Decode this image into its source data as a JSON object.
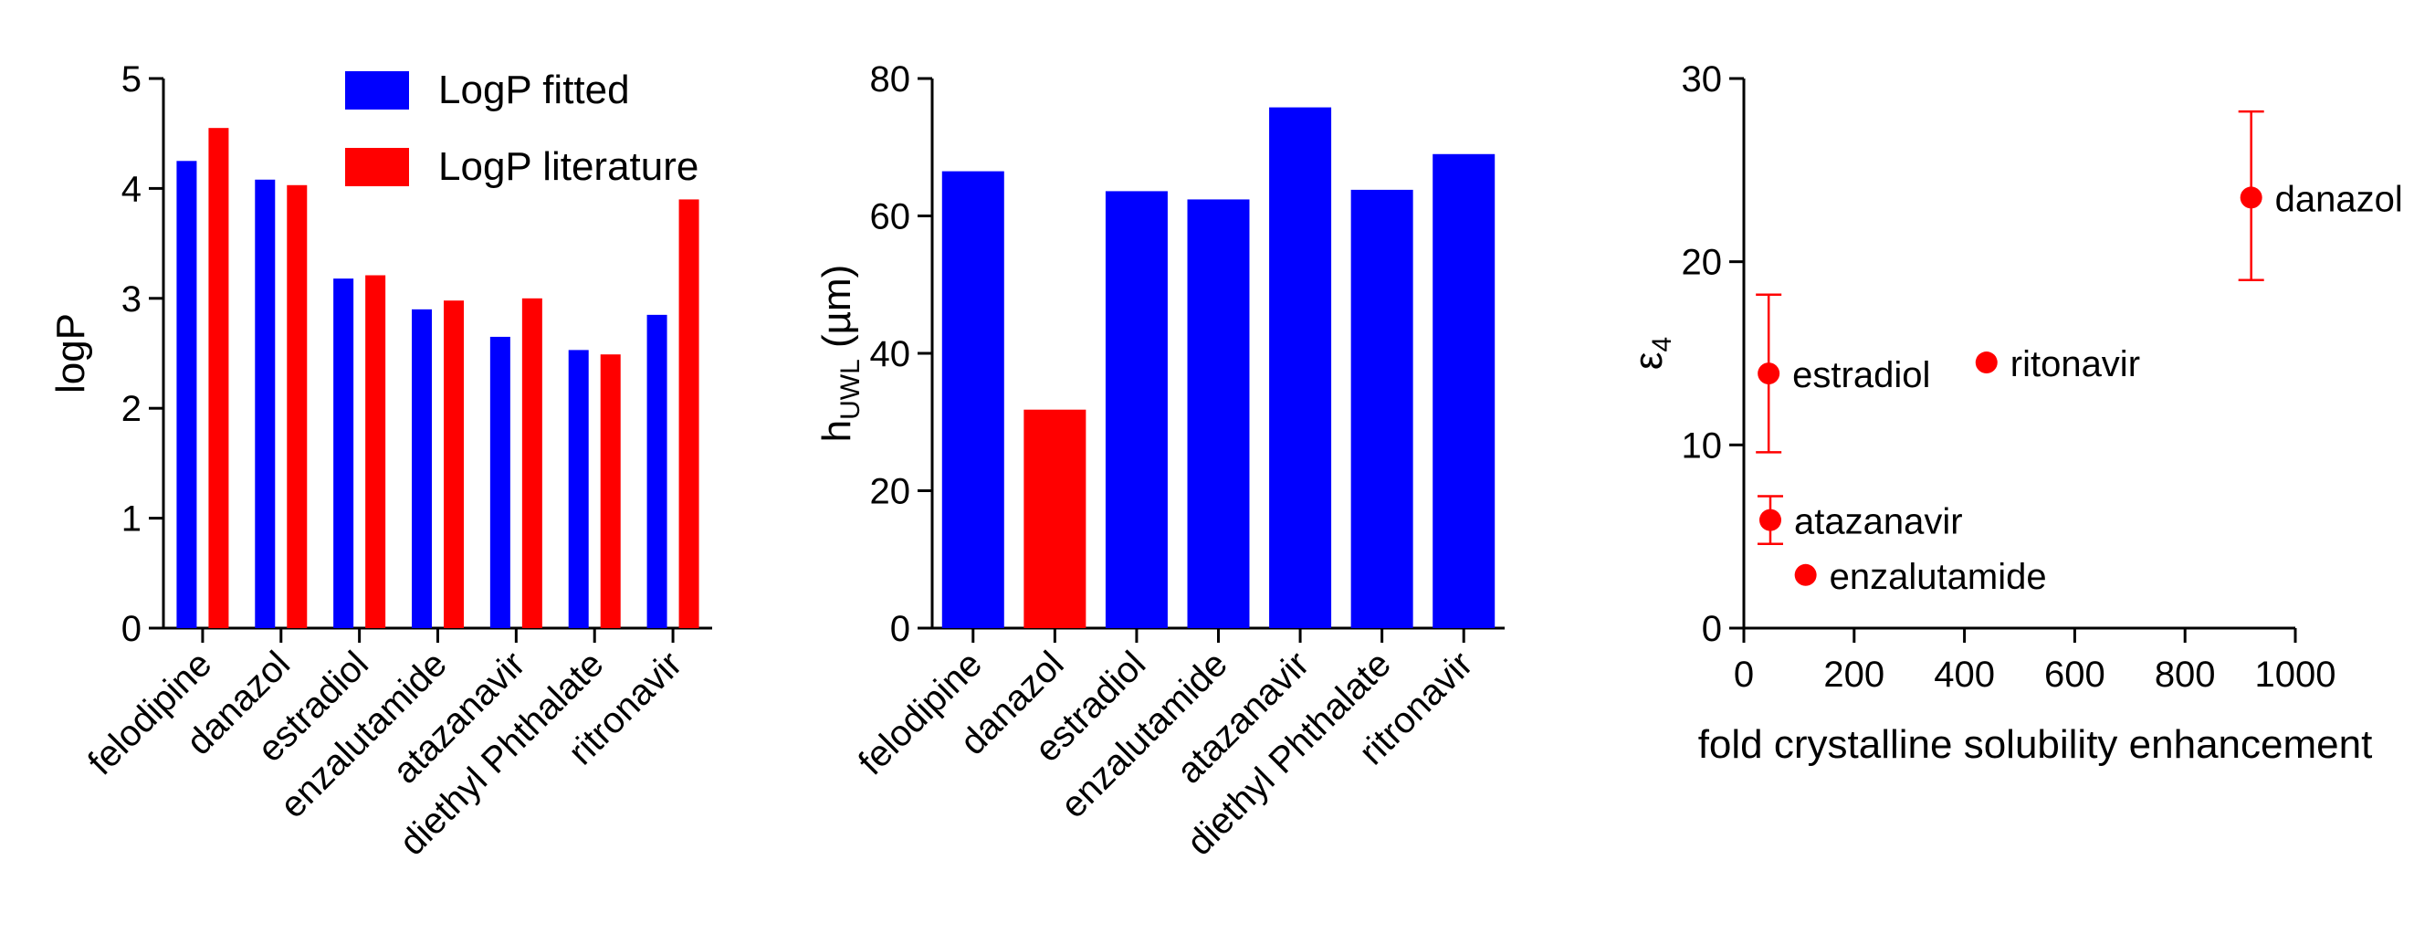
{
  "chart_data": [
    {
      "type": "bar",
      "ylabel": "logP",
      "ylim": [
        0,
        5
      ],
      "yticks": [
        0,
        1,
        2,
        3,
        4,
        5
      ],
      "categories": [
        "felodipine",
        "danazol",
        "estradiol",
        "enzalutamide",
        "atazanavir",
        "diethyl Phthalate",
        "ritronavir"
      ],
      "series": [
        {
          "name": "LogP fitted",
          "color": "#0000FF",
          "values": [
            4.25,
            4.08,
            3.18,
            2.9,
            2.65,
            2.53,
            2.85
          ]
        },
        {
          "name": "LogP literature",
          "color": "#FF0000",
          "values": [
            4.55,
            4.03,
            3.21,
            2.98,
            3.0,
            2.49,
            3.9
          ]
        }
      ],
      "legend": "top-right"
    },
    {
      "type": "bar",
      "ylabel": {
        "main": "h",
        "sub": "UWL",
        "unit": " (µm)"
      },
      "ylim": [
        0,
        80
      ],
      "yticks": [
        0,
        20,
        40,
        60,
        80
      ],
      "categories": [
        "felodipine",
        "danazol",
        "estradiol",
        "enzalutamide",
        "atazanavir",
        "diethyl Phthalate",
        "ritronavir"
      ],
      "values": [
        66.5,
        31.8,
        63.6,
        62.4,
        75.8,
        63.8,
        69.0
      ],
      "colors": [
        "#0000FF",
        "#FF0000",
        "#0000FF",
        "#0000FF",
        "#0000FF",
        "#0000FF",
        "#0000FF"
      ]
    },
    {
      "type": "scatter",
      "xlabel": "fold crystalline solubility enhancement",
      "ylabel": {
        "main": "ε",
        "sub": "4"
      },
      "xlim": [
        0,
        1000
      ],
      "ylim": [
        0,
        30
      ],
      "xticks": [
        0,
        200,
        400,
        600,
        800,
        1000
      ],
      "yticks": [
        0,
        10,
        20,
        30
      ],
      "color": "#FF0000",
      "points": [
        {
          "label": "danazol",
          "x": 920,
          "y": 23.5,
          "err": [
            19.0,
            28.2
          ]
        },
        {
          "label": "estradiol",
          "x": 45,
          "y": 13.9,
          "err": [
            9.6,
            18.2
          ]
        },
        {
          "label": "ritonavir",
          "x": 440,
          "y": 14.5
        },
        {
          "label": "atazanavir",
          "x": 48,
          "y": 5.9,
          "err": [
            4.6,
            7.2
          ]
        },
        {
          "label": "enzalutamide",
          "x": 112,
          "y": 2.9
        }
      ]
    }
  ]
}
